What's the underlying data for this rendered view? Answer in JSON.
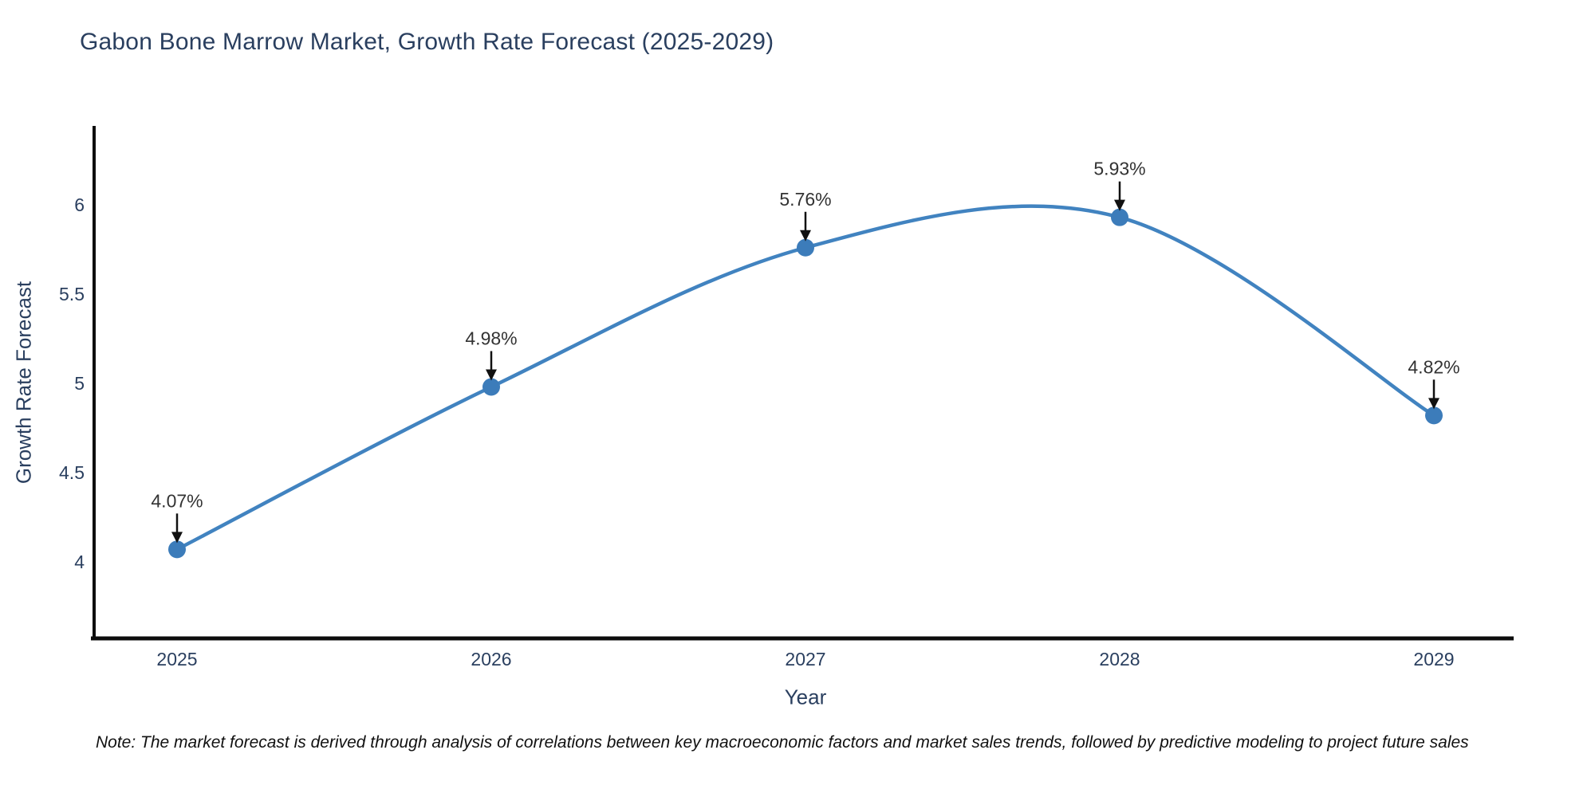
{
  "title": "Gabon Bone Marrow Market, Growth Rate Forecast (2025-2029)",
  "note": "Note: The market forecast is derived through analysis of correlations between key macroeconomic factors and market sales trends, followed by predictive modeling to project future sales",
  "chart_data": {
    "type": "line",
    "title": "Gabon Bone Marrow Market, Growth Rate Forecast (2025-2029)",
    "xlabel": "Year",
    "ylabel": "Growth Rate Forecast",
    "x": [
      2025,
      2026,
      2027,
      2028,
      2029
    ],
    "series": [
      {
        "name": "Growth Rate Forecast",
        "values": [
          4.07,
          4.98,
          5.76,
          5.93,
          4.82
        ]
      }
    ],
    "point_labels": [
      "4.07%",
      "4.98%",
      "5.76%",
      "5.93%",
      "4.82%"
    ],
    "yticks": [
      4,
      4.5,
      5,
      5.5,
      6
    ],
    "xticks": [
      "2025",
      "2026",
      "2027",
      "2028",
      "2029"
    ],
    "ylim": [
      3.57,
      6.44
    ],
    "grid": false,
    "legend_position": "none",
    "line_style": "spline",
    "colors": {
      "line": "#4183c0",
      "marker": "#3c7cba",
      "axis": "#0d0d0d",
      "tick_text": "#2a3f5f",
      "title_text": "#2a3f5f",
      "annotation_text": "#333333",
      "annotation_arrow": "#111111",
      "background": "#ffffff"
    }
  }
}
